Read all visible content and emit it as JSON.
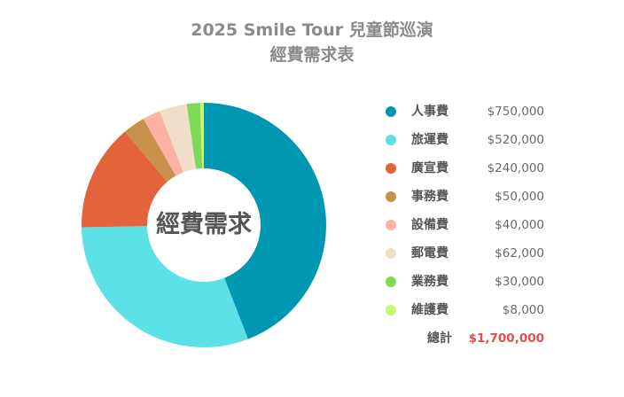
{
  "title_line1": "2025 Smile Tour 兒童節巡演",
  "title_line2": "經費需求表",
  "chart_data": {
    "type": "pie",
    "style": "donut",
    "center_label": "經費需求",
    "categories": [
      "人事費",
      "旅運費",
      "廣宣費",
      "事務費",
      "設備費",
      "郵電費",
      "業務費",
      "維護費"
    ],
    "values": [
      750000,
      520000,
      240000,
      50000,
      40000,
      62000,
      30000,
      8000
    ],
    "value_labels": [
      "$750,000",
      "$520,000",
      "$240,000",
      "$50,000",
      "$40,000",
      "$62,000",
      "$30,000",
      "$8,000"
    ],
    "colors": [
      "#0097b2",
      "#5ce1e6",
      "#e3633a",
      "#c8914c",
      "#ffb2a4",
      "#efdfc9",
      "#7ed957",
      "#c9f76f"
    ],
    "legend_position": "right"
  },
  "total": {
    "label": "總計",
    "value": "$1,700,000"
  }
}
